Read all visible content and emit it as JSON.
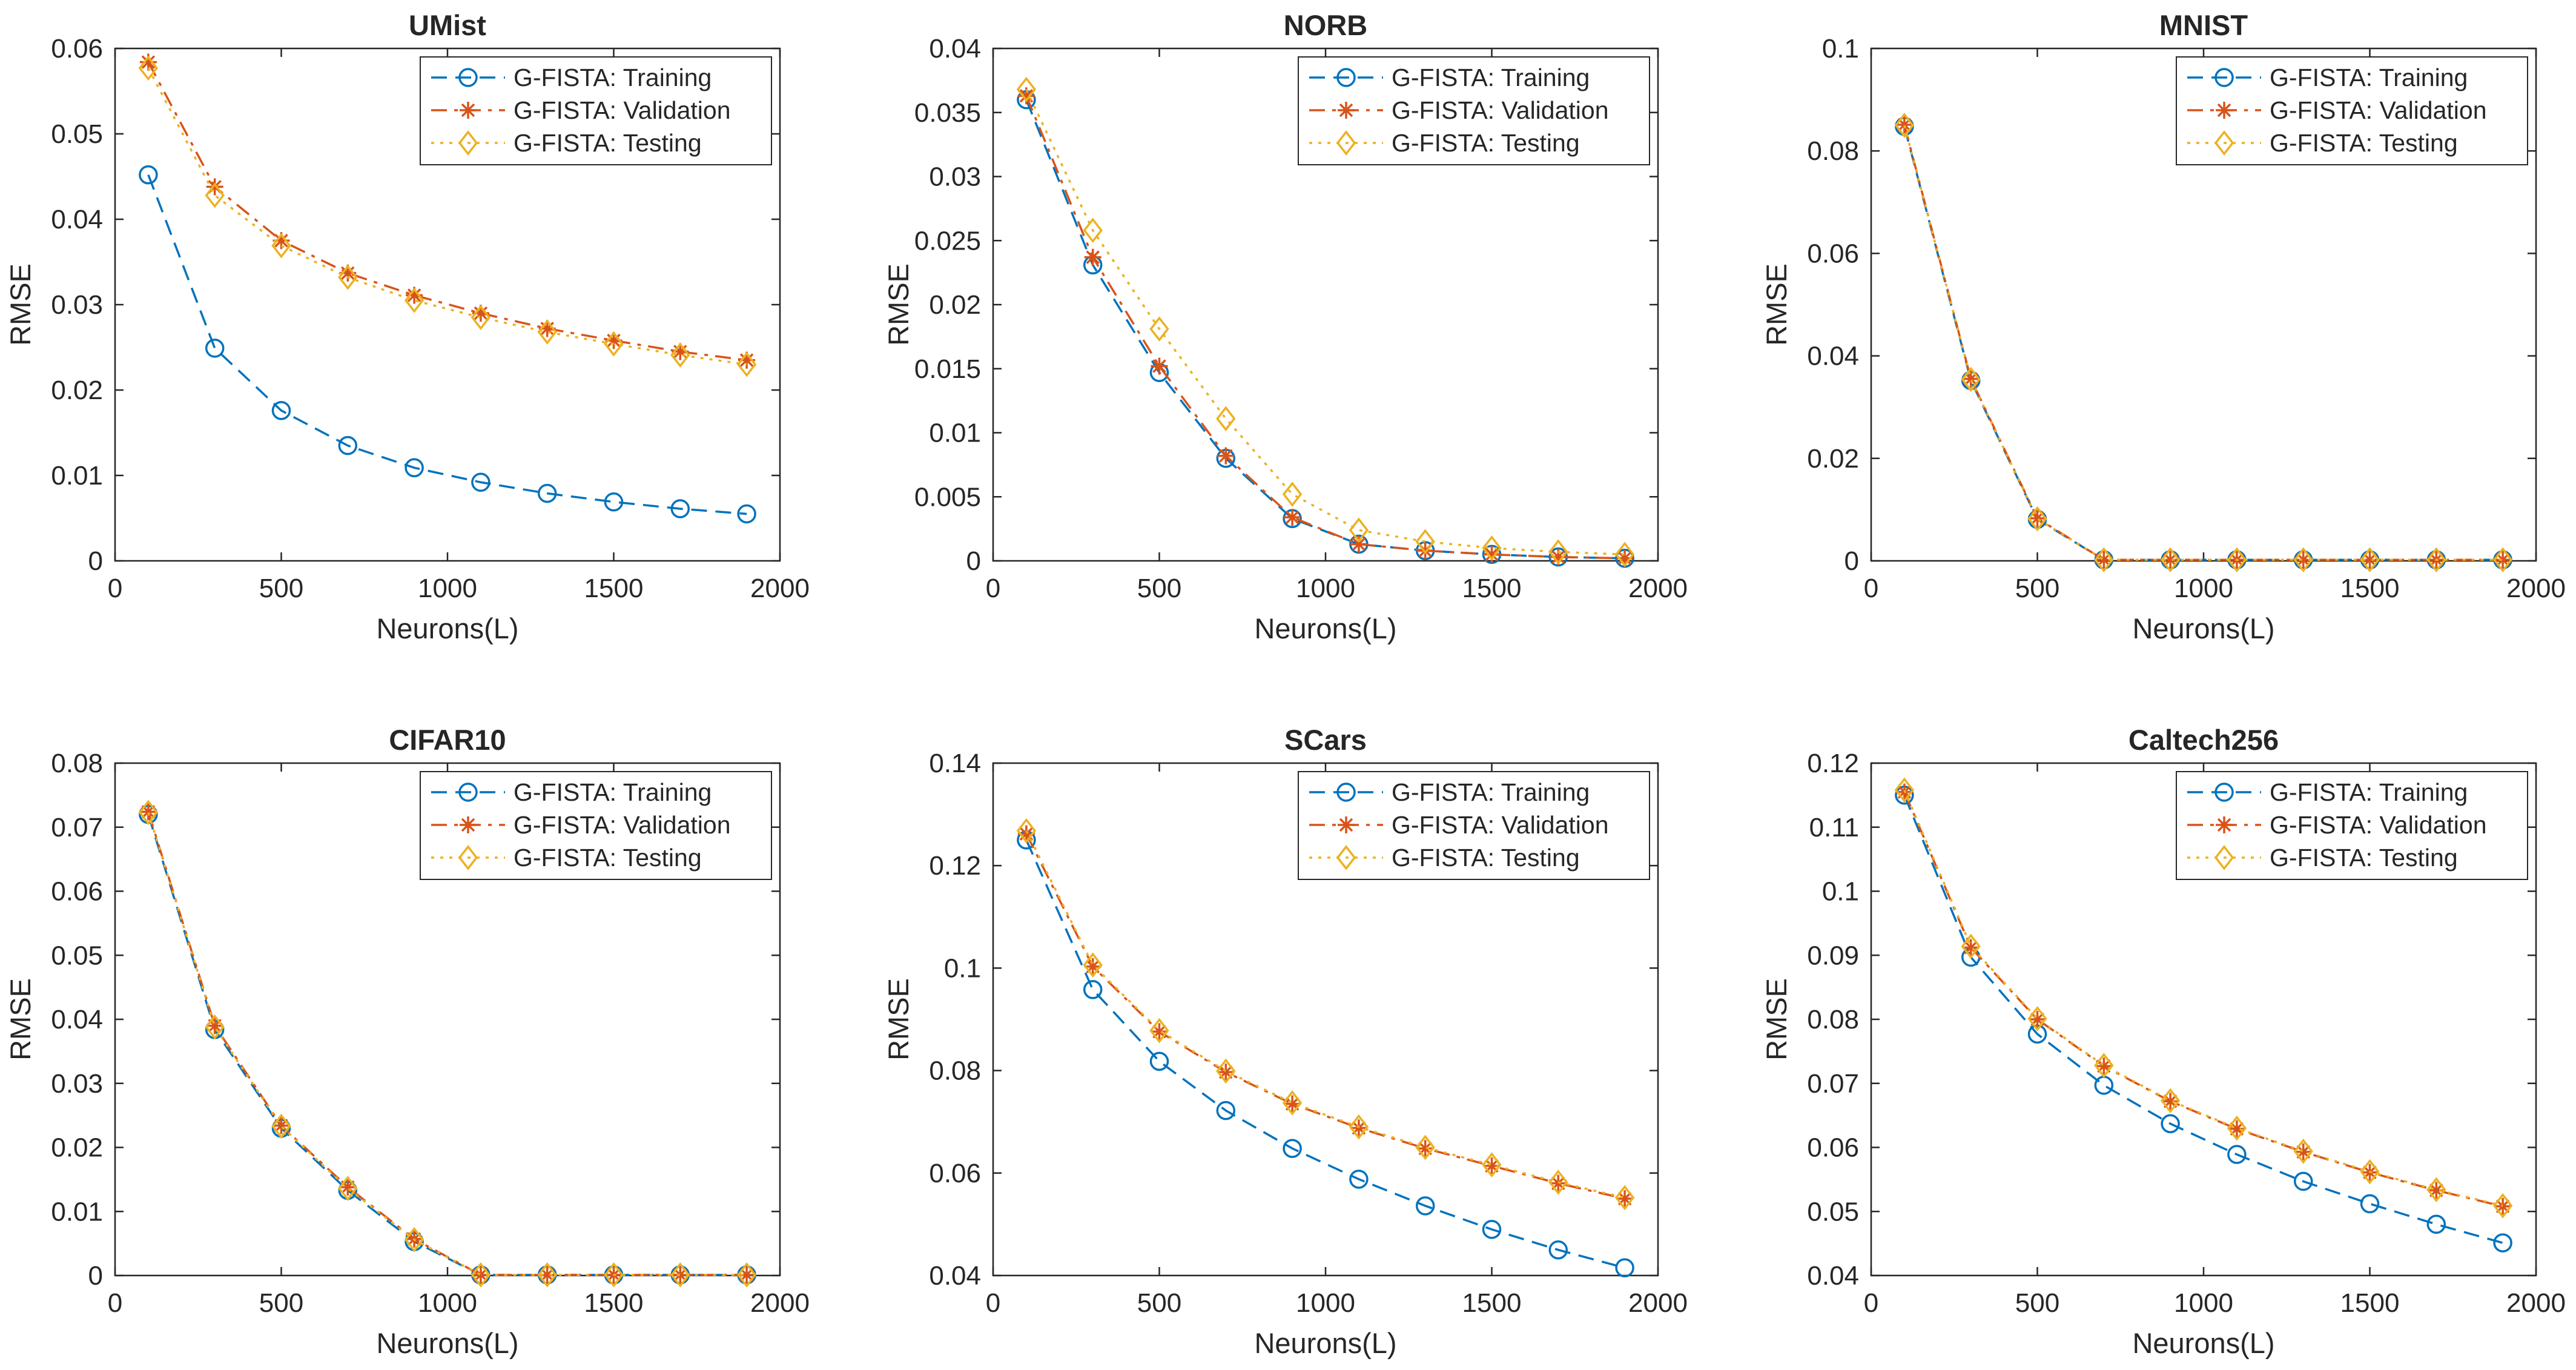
{
  "figure_title": "",
  "series_styles": [
    {
      "name": "G-FISTA: Training",
      "color": "#0072BD",
      "marker": "circle",
      "dash": "dashed"
    },
    {
      "name": "G-FISTA: Validation",
      "color": "#D95319",
      "marker": "asterisk",
      "dash": "dashdot"
    },
    {
      "name": "G-FISTA: Testing",
      "color": "#EDB120",
      "marker": "diamond",
      "dash": "dotted"
    }
  ],
  "chart_data": [
    {
      "type": "line",
      "title": "UMist",
      "xlabel": "Neurons(L)",
      "ylabel": "RMSE",
      "xlim": [
        0,
        2000
      ],
      "ylim": [
        0,
        0.06
      ],
      "xticks": [
        0,
        500,
        1000,
        1500,
        2000
      ],
      "xtick_labels": [
        "0",
        "500",
        "1000",
        "1500",
        "2000"
      ],
      "yticks": [
        0,
        0.01,
        0.02,
        0.03,
        0.04,
        0.05,
        0.06
      ],
      "ytick_labels": [
        "0",
        "0.01",
        "0.02",
        "0.03",
        "0.04",
        "0.05",
        "0.06"
      ],
      "legend_position": "top-right",
      "x": [
        100,
        300,
        500,
        700,
        900,
        1100,
        1300,
        1500,
        1700,
        1900
      ],
      "series": [
        {
          "name": "G-FISTA: Training",
          "values": [
            0.0452,
            0.0249,
            0.0176,
            0.0135,
            0.0109,
            0.0092,
            0.0079,
            0.0069,
            0.0061,
            0.0055
          ]
        },
        {
          "name": "G-FISTA: Validation",
          "values": [
            0.0584,
            0.0438,
            0.0375,
            0.0337,
            0.0311,
            0.029,
            0.0272,
            0.0258,
            0.0245,
            0.0235
          ]
        },
        {
          "name": "G-FISTA: Testing",
          "values": [
            0.0577,
            0.0428,
            0.0369,
            0.0332,
            0.0305,
            0.0285,
            0.0268,
            0.0254,
            0.0241,
            0.023
          ]
        }
      ]
    },
    {
      "type": "line",
      "title": "NORB",
      "xlabel": "Neurons(L)",
      "ylabel": "RMSE",
      "xlim": [
        0,
        2000
      ],
      "ylim": [
        0,
        0.04
      ],
      "xticks": [
        0,
        500,
        1000,
        1500,
        2000
      ],
      "xtick_labels": [
        "0",
        "500",
        "1000",
        "1500",
        "2000"
      ],
      "yticks": [
        0,
        0.005,
        0.01,
        0.015,
        0.02,
        0.025,
        0.03,
        0.035,
        0.04
      ],
      "ytick_labels": [
        "0",
        "0.005",
        "0.01",
        "0.015",
        "0.02",
        "0.025",
        "0.03",
        "0.035",
        "0.04"
      ],
      "legend_position": "top-right",
      "x": [
        100,
        300,
        500,
        700,
        900,
        1100,
        1300,
        1500,
        1700,
        1900
      ],
      "series": [
        {
          "name": "G-FISTA: Training",
          "values": [
            0.036,
            0.0231,
            0.0147,
            0.008,
            0.0033,
            0.0013,
            0.0008,
            0.0005,
            0.0003,
            0.0002
          ]
        },
        {
          "name": "G-FISTA: Validation",
          "values": [
            0.0363,
            0.0237,
            0.0152,
            0.0082,
            0.0034,
            0.0013,
            0.0008,
            0.0005,
            0.0003,
            0.0002
          ]
        },
        {
          "name": "G-FISTA: Testing",
          "values": [
            0.0368,
            0.0258,
            0.0181,
            0.0111,
            0.0052,
            0.0024,
            0.0015,
            0.001,
            0.0007,
            0.0005
          ]
        }
      ]
    },
    {
      "type": "line",
      "title": "MNIST",
      "xlabel": "Neurons(L)",
      "ylabel": "RMSE",
      "xlim": [
        0,
        2000
      ],
      "ylim": [
        0,
        0.1
      ],
      "xticks": [
        0,
        500,
        1000,
        1500,
        2000
      ],
      "xtick_labels": [
        "0",
        "500",
        "1000",
        "1500",
        "2000"
      ],
      "yticks": [
        0,
        0.02,
        0.04,
        0.06,
        0.08,
        0.1
      ],
      "ytick_labels": [
        "0",
        "0.02",
        "0.04",
        "0.06",
        "0.08",
        "0.1"
      ],
      "legend_position": "top-right",
      "x": [
        100,
        300,
        500,
        700,
        900,
        1100,
        1300,
        1500,
        1700,
        1900
      ],
      "series": [
        {
          "name": "G-FISTA: Training",
          "values": [
            0.0848,
            0.0352,
            0.0081,
            0.0002,
            0.0002,
            0.0002,
            0.0002,
            0.0002,
            0.0002,
            0.0002
          ]
        },
        {
          "name": "G-FISTA: Validation",
          "values": [
            0.0851,
            0.0355,
            0.0083,
            0.0002,
            0.0002,
            0.0002,
            0.0002,
            0.0002,
            0.0002,
            0.0002
          ]
        },
        {
          "name": "G-FISTA: Testing",
          "values": [
            0.085,
            0.0354,
            0.0082,
            0.0002,
            0.0002,
            0.0002,
            0.0002,
            0.0002,
            0.0002,
            0.0002
          ]
        }
      ]
    },
    {
      "type": "line",
      "title": "CIFAR10",
      "xlabel": "Neurons(L)",
      "ylabel": "RMSE",
      "xlim": [
        0,
        2000
      ],
      "ylim": [
        0,
        0.08
      ],
      "xticks": [
        0,
        500,
        1000,
        1500,
        2000
      ],
      "xtick_labels": [
        "0",
        "500",
        "1000",
        "1500",
        "2000"
      ],
      "yticks": [
        0,
        0.01,
        0.02,
        0.03,
        0.04,
        0.05,
        0.06,
        0.07,
        0.08
      ],
      "ytick_labels": [
        "0",
        "0.01",
        "0.02",
        "0.03",
        "0.04",
        "0.05",
        "0.06",
        "0.07",
        "0.08"
      ],
      "legend_position": "top-right",
      "x": [
        100,
        300,
        500,
        700,
        900,
        1100,
        1300,
        1500,
        1700,
        1900
      ],
      "series": [
        {
          "name": "G-FISTA: Training",
          "values": [
            0.072,
            0.0384,
            0.023,
            0.0133,
            0.0053,
            0.0001,
            0.0001,
            0.0001,
            0.0001,
            0.0001
          ]
        },
        {
          "name": "G-FISTA: Validation",
          "values": [
            0.0724,
            0.039,
            0.0234,
            0.0138,
            0.0057,
            0.0001,
            0.0001,
            0.0001,
            0.0001,
            0.0001
          ]
        },
        {
          "name": "G-FISTA: Testing",
          "values": [
            0.0723,
            0.0388,
            0.0233,
            0.0136,
            0.0056,
            0.0001,
            0.0001,
            0.0001,
            0.0001,
            0.0001
          ]
        }
      ]
    },
    {
      "type": "line",
      "title": "SCars",
      "xlabel": "Neurons(L)",
      "ylabel": "RMSE",
      "xlim": [
        0,
        2000
      ],
      "ylim": [
        0.04,
        0.14
      ],
      "xticks": [
        0,
        500,
        1000,
        1500,
        2000
      ],
      "xtick_labels": [
        "0",
        "500",
        "1000",
        "1500",
        "2000"
      ],
      "yticks": [
        0.04,
        0.06,
        0.08,
        0.1,
        0.12,
        0.14
      ],
      "ytick_labels": [
        "0.04",
        "0.06",
        "0.08",
        "0.1",
        "0.12",
        "0.14"
      ],
      "legend_position": "top-right",
      "x": [
        100,
        300,
        500,
        700,
        900,
        1100,
        1300,
        1500,
        1700,
        1900
      ],
      "series": [
        {
          "name": "G-FISTA: Training",
          "values": [
            0.125,
            0.0958,
            0.0818,
            0.0722,
            0.0648,
            0.0588,
            0.0536,
            0.049,
            0.045,
            0.0415
          ]
        },
        {
          "name": "G-FISTA: Validation",
          "values": [
            0.1262,
            0.1003,
            0.0876,
            0.0797,
            0.0735,
            0.0688,
            0.0648,
            0.0614,
            0.058,
            0.055
          ]
        },
        {
          "name": "G-FISTA: Testing",
          "values": [
            0.1268,
            0.1006,
            0.0878,
            0.0799,
            0.0737,
            0.069,
            0.065,
            0.0616,
            0.0582,
            0.0552
          ]
        }
      ]
    },
    {
      "type": "line",
      "title": "Caltech256",
      "xlabel": "Neurons(L)",
      "ylabel": "RMSE",
      "xlim": [
        0,
        2000
      ],
      "ylim": [
        0.04,
        0.12
      ],
      "xticks": [
        0,
        500,
        1000,
        1500,
        2000
      ],
      "xtick_labels": [
        "0",
        "500",
        "1000",
        "1500",
        "2000"
      ],
      "yticks": [
        0.04,
        0.05,
        0.06,
        0.07,
        0.08,
        0.09,
        0.1,
        0.11,
        0.12
      ],
      "ytick_labels": [
        "0.04",
        "0.05",
        "0.06",
        "0.07",
        "0.08",
        "0.09",
        "0.1",
        "0.11",
        "0.12"
      ],
      "legend_position": "top-right",
      "x": [
        100,
        300,
        500,
        700,
        900,
        1100,
        1300,
        1500,
        1700,
        1900
      ],
      "series": [
        {
          "name": "G-FISTA: Training",
          "values": [
            0.115,
            0.0897,
            0.0777,
            0.0697,
            0.0637,
            0.0589,
            0.0547,
            0.0512,
            0.048,
            0.0451
          ]
        },
        {
          "name": "G-FISTA: Validation",
          "values": [
            0.1155,
            0.0912,
            0.08,
            0.0727,
            0.0672,
            0.0629,
            0.0593,
            0.0561,
            0.0533,
            0.0508
          ]
        },
        {
          "name": "G-FISTA: Testing",
          "values": [
            0.1158,
            0.0914,
            0.0801,
            0.0728,
            0.0673,
            0.063,
            0.0594,
            0.0562,
            0.0534,
            0.0509
          ]
        }
      ]
    }
  ]
}
